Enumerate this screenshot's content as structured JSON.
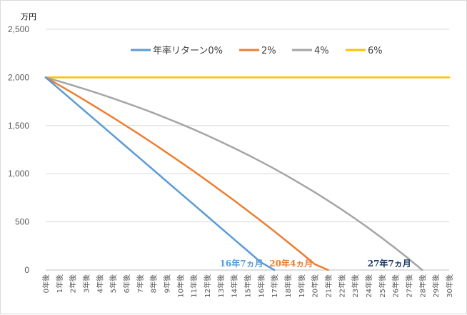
{
  "chart_data": {
    "type": "line",
    "ylabel": "万円",
    "ylim": [
      0,
      2500
    ],
    "yticks": [
      0,
      500,
      1000,
      1500,
      2000,
      2500
    ],
    "ytick_labels": [
      "0",
      "500",
      "1,000",
      "1,500",
      "2,000",
      "2,500"
    ],
    "grid": true,
    "legend_position": "top",
    "categories": [
      "0年後",
      "1年後",
      "2年後",
      "3年後",
      "4年後",
      "5年後",
      "6年後",
      "7年後",
      "8年後",
      "9年後",
      "10年後",
      "11年後",
      "12年後",
      "13年後",
      "14年後",
      "15年後",
      "16年後",
      "17年後",
      "18年後",
      "19年後",
      "20年後",
      "21年後",
      "22年後",
      "23年後",
      "24年後",
      "25年後",
      "26年後",
      "27年後",
      "28年後",
      "29年後",
      "30年後"
    ],
    "series": [
      {
        "name": "年率リターン0%",
        "color": "#5b9bd5",
        "values": [
          2000,
          1880,
          1760,
          1640,
          1520,
          1400,
          1280,
          1160,
          1040,
          920,
          800,
          680,
          560,
          440,
          320,
          200,
          80,
          0,
          null,
          null,
          null,
          null,
          null,
          null,
          null,
          null,
          null,
          null,
          null,
          null,
          null
        ]
      },
      {
        "name": "2%",
        "color": "#ed7d31",
        "values": [
          2000,
          1920,
          1838,
          1755,
          1670,
          1583,
          1495,
          1405,
          1313,
          1219,
          1124,
          1027,
          927,
          826,
          723,
          618,
          511,
          402,
          290,
          177,
          61,
          0,
          null,
          null,
          null,
          null,
          null,
          null,
          null,
          null,
          null
        ]
      },
      {
        "name": "4%",
        "color": "#a5a5a5",
        "values": [
          2000,
          1960,
          1918,
          1875,
          1830,
          1783,
          1734,
          1684,
          1631,
          1576,
          1519,
          1460,
          1398,
          1334,
          1267,
          1198,
          1126,
          1051,
          973,
          892,
          808,
          720,
          629,
          534,
          436,
          333,
          226,
          116,
          0,
          null,
          null
        ]
      },
      {
        "name": "6%",
        "color": "#ffc000",
        "values": [
          2000,
          2000,
          2000,
          2000,
          2000,
          2000,
          2000,
          2000,
          2000,
          2000,
          2000,
          2000,
          2000,
          2000,
          2000,
          2000,
          2000,
          2000,
          2000,
          2000,
          2000,
          2000,
          2000,
          2000,
          2000,
          2000,
          2000,
          2000,
          2000,
          2000,
          2000
        ]
      }
    ],
    "annotations": [
      {
        "text": "16年7ヵ月",
        "x": 16.6,
        "color": "#5b9bd5"
      },
      {
        "text": "20年4ヵ月",
        "x": 20.3,
        "color": "#ed7d31"
      },
      {
        "text": "27年7ヵ月",
        "x": 27.6,
        "color": "#1f3864"
      }
    ]
  }
}
